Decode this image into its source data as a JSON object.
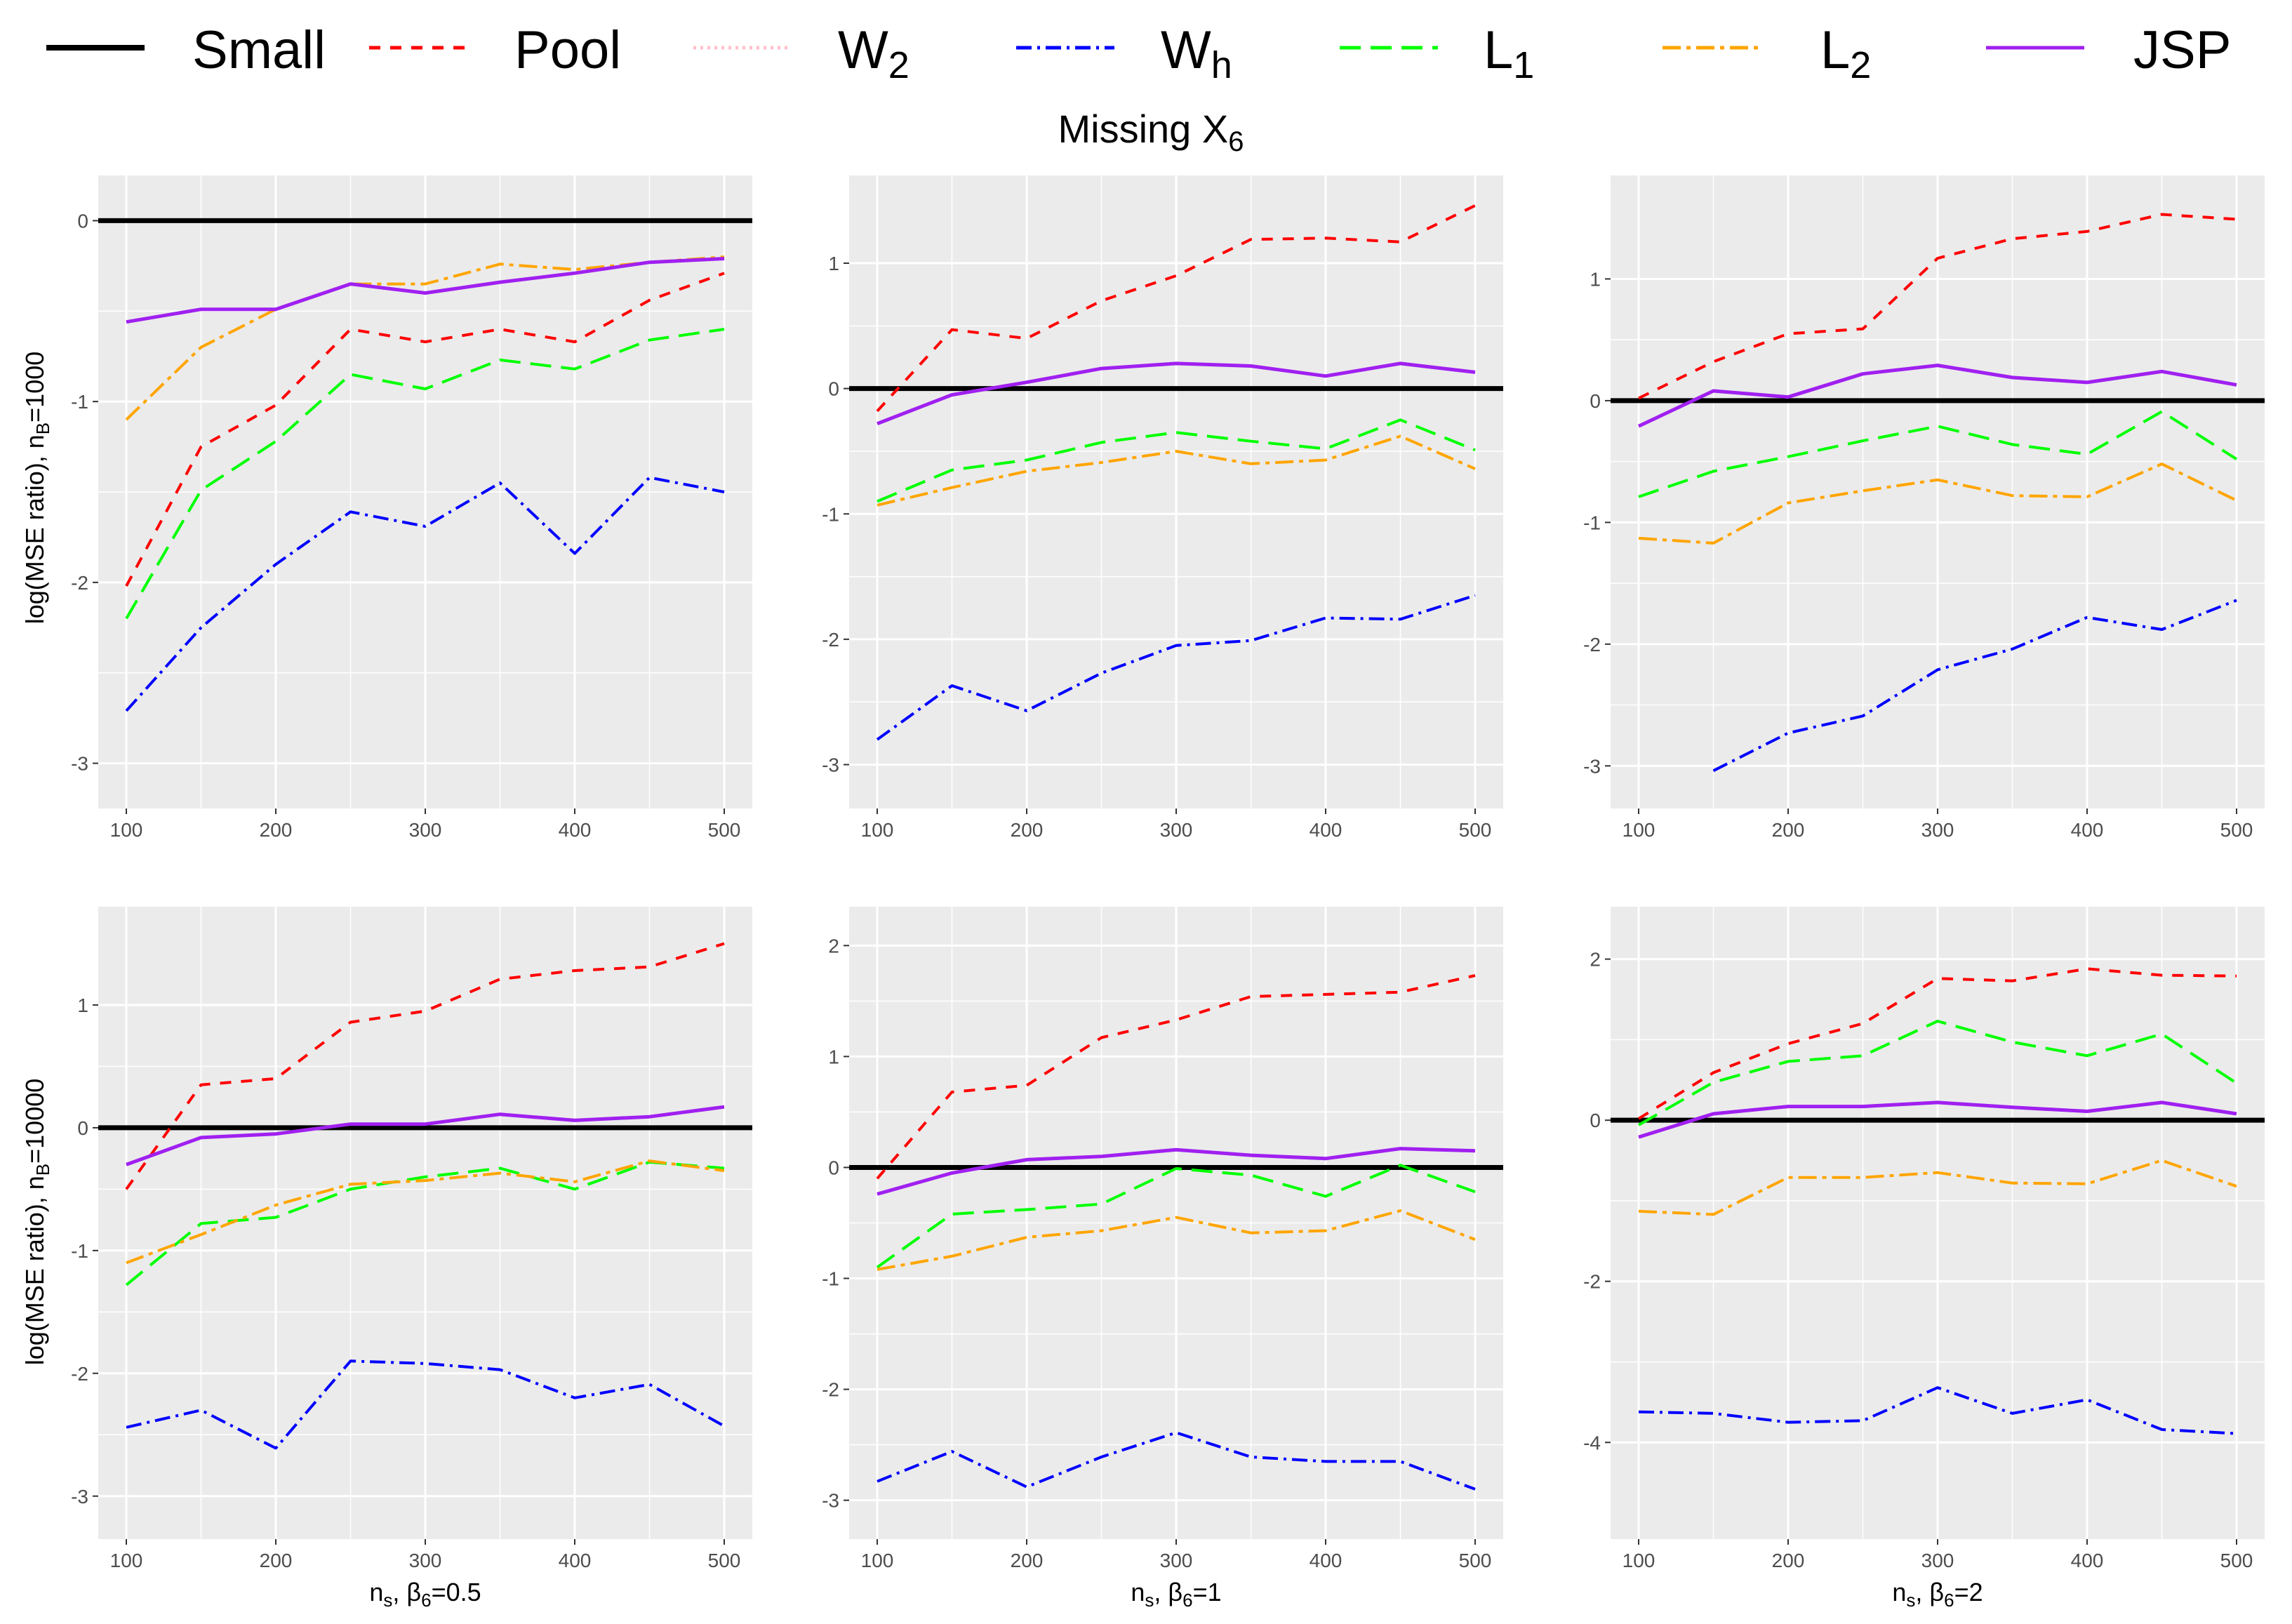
{
  "title_main": "Missing",
  "title_var": "X",
  "title_sub": "6",
  "legend": [
    {
      "key": "small",
      "base": "Small",
      "sub": "",
      "color": "#000000",
      "dash": "none",
      "width": 7
    },
    {
      "key": "pool",
      "base": "Pool",
      "sub": "",
      "color": "#ff0000",
      "dash": "16,14",
      "width": 4
    },
    {
      "key": "w2",
      "base": "W",
      "sub": "2",
      "color": "#ffc0cb",
      "dash": "4,6",
      "width": 4
    },
    {
      "key": "wh",
      "base": "W",
      "sub": "h",
      "color": "#0000ff",
      "dash": "22,8,4,8",
      "width": 4
    },
    {
      "key": "l1",
      "base": "L",
      "sub": "1",
      "color": "#00ff00",
      "dash": "30,14",
      "width": 4
    },
    {
      "key": "l2",
      "base": "L",
      "sub": "2",
      "color": "#ffa500",
      "dash": "26,8,6,8",
      "width": 4
    },
    {
      "key": "jsp",
      "base": "JSP",
      "sub": "",
      "color": "#a020f0",
      "dash": "none",
      "width": 5
    }
  ],
  "row_labels": [
    {
      "text": "log(MSE ratio), n",
      "sub": "B",
      "suffix": "=1000"
    },
    {
      "text": "log(MSE ratio), n",
      "sub": "B",
      "suffix": "=10000"
    }
  ],
  "col_labels": [
    {
      "text": "n",
      "sub1": "s",
      "mid": ", β",
      "sub2": "6",
      "suffix": "=0.5"
    },
    {
      "text": "n",
      "sub1": "s",
      "mid": ", β",
      "sub2": "6",
      "suffix": "=1"
    },
    {
      "text": "n",
      "sub1": "s",
      "mid": ", β",
      "sub2": "6",
      "suffix": "=2"
    }
  ],
  "chart_data": [
    {
      "type": "line",
      "row": 0,
      "col": 0,
      "x": [
        100,
        150,
        200,
        250,
        300,
        350,
        400,
        450,
        500
      ],
      "xticks": [
        100,
        200,
        300,
        400,
        500
      ],
      "xlim": [
        100,
        500
      ],
      "ylim": [
        -3.25,
        0.25
      ],
      "yticks": [
        0,
        -1,
        -2,
        -3
      ],
      "yticklabels": [
        "0",
        "-1",
        "-2",
        "-3"
      ],
      "series": [
        {
          "name": "Pool",
          "values": [
            -2.02,
            -1.25,
            -1.02,
            -0.6,
            -0.67,
            -0.6,
            -0.67,
            -0.44,
            -0.29
          ]
        },
        {
          "name": "L1",
          "values": [
            -2.2,
            -1.49,
            -1.22,
            -0.85,
            -0.93,
            -0.77,
            -0.82,
            -0.66,
            -0.6
          ]
        },
        {
          "name": "L2",
          "values": [
            -1.1,
            -0.7,
            -0.49,
            -0.35,
            -0.35,
            -0.24,
            -0.27,
            -0.23,
            -0.2
          ]
        },
        {
          "name": "Wh",
          "values": [
            -2.71,
            -2.25,
            -1.9,
            -1.61,
            -1.69,
            -1.45,
            -1.84,
            -1.42,
            -1.5
          ]
        },
        {
          "name": "JSP",
          "values": [
            -0.56,
            -0.49,
            -0.49,
            -0.35,
            -0.4,
            -0.34,
            -0.29,
            -0.23,
            -0.21
          ]
        }
      ]
    },
    {
      "type": "line",
      "row": 0,
      "col": 1,
      "x": [
        100,
        150,
        200,
        250,
        300,
        350,
        400,
        450,
        500
      ],
      "xticks": [
        100,
        200,
        300,
        400,
        500
      ],
      "xlim": [
        100,
        500
      ],
      "ylim": [
        -3.35,
        1.7
      ],
      "yticks": [
        1,
        0,
        -1,
        -2,
        -3
      ],
      "yticklabels": [
        "1",
        "0",
        "-1",
        "-2",
        "-3"
      ],
      "series": [
        {
          "name": "Pool",
          "values": [
            -0.18,
            0.47,
            0.4,
            0.7,
            0.9,
            1.19,
            1.2,
            1.17,
            1.46
          ]
        },
        {
          "name": "L1",
          "values": [
            -0.9,
            -0.65,
            -0.57,
            -0.43,
            -0.35,
            -0.42,
            -0.48,
            -0.25,
            -0.49
          ]
        },
        {
          "name": "L2",
          "values": [
            -0.93,
            -0.79,
            -0.66,
            -0.59,
            -0.5,
            -0.6,
            -0.57,
            -0.38,
            -0.64
          ]
        },
        {
          "name": "Wh",
          "values": [
            -2.8,
            -2.37,
            -2.57,
            -2.27,
            -2.05,
            -2.01,
            -1.83,
            -1.84,
            -1.65
          ]
        },
        {
          "name": "JSP",
          "values": [
            -0.28,
            -0.05,
            0.05,
            0.16,
            0.2,
            0.18,
            0.1,
            0.2,
            0.13
          ]
        }
      ]
    },
    {
      "type": "line",
      "row": 0,
      "col": 2,
      "x": [
        100,
        150,
        200,
        250,
        300,
        350,
        400,
        450,
        500
      ],
      "xticks": [
        100,
        200,
        300,
        400,
        500
      ],
      "xlim": [
        100,
        500
      ],
      "ylim": [
        -3.35,
        1.85
      ],
      "yticks": [
        1,
        0,
        -1,
        -2,
        -3
      ],
      "yticklabels": [
        "1",
        "0",
        "-1",
        "-2",
        "-3"
      ],
      "series": [
        {
          "name": "Pool",
          "values": [
            0.02,
            0.32,
            0.55,
            0.59,
            1.17,
            1.33,
            1.39,
            1.53,
            1.49
          ]
        },
        {
          "name": "L1",
          "values": [
            -0.79,
            -0.58,
            -0.46,
            -0.33,
            -0.21,
            -0.36,
            -0.44,
            -0.09,
            -0.48
          ]
        },
        {
          "name": "L2",
          "values": [
            -1.13,
            -1.17,
            -0.84,
            -0.74,
            -0.65,
            -0.78,
            -0.79,
            -0.52,
            -0.82
          ]
        },
        {
          "name": "Wh",
          "values": [
            null,
            -3.04,
            -2.73,
            -2.59,
            -2.21,
            -2.04,
            -1.78,
            -1.88,
            -1.64
          ]
        },
        {
          "name": "JSP",
          "values": [
            -0.21,
            0.08,
            0.03,
            0.22,
            0.29,
            0.19,
            0.15,
            0.24,
            0.13
          ]
        }
      ]
    },
    {
      "type": "line",
      "row": 1,
      "col": 0,
      "x": [
        100,
        150,
        200,
        250,
        300,
        350,
        400,
        450,
        500
      ],
      "xticks": [
        100,
        200,
        300,
        400,
        500
      ],
      "xlim": [
        100,
        500
      ],
      "ylim": [
        -3.35,
        1.8
      ],
      "yticks": [
        1,
        0,
        -1,
        -2,
        -3
      ],
      "yticklabels": [
        "1",
        "0",
        "-1",
        "-2",
        "-3"
      ],
      "series": [
        {
          "name": "Pool",
          "values": [
            -0.5,
            0.35,
            0.4,
            0.86,
            0.95,
            1.21,
            1.28,
            1.31,
            1.5
          ]
        },
        {
          "name": "L1",
          "values": [
            -1.28,
            -0.78,
            -0.73,
            -0.5,
            -0.4,
            -0.33,
            -0.5,
            -0.28,
            -0.33
          ]
        },
        {
          "name": "L2",
          "values": [
            -1.1,
            -0.87,
            -0.63,
            -0.46,
            -0.43,
            -0.37,
            -0.44,
            -0.27,
            -0.35
          ]
        },
        {
          "name": "Wh",
          "values": [
            -2.44,
            -2.3,
            -2.61,
            -1.9,
            -1.92,
            -1.97,
            -2.2,
            -2.09,
            -2.43
          ]
        },
        {
          "name": "JSP",
          "values": [
            -0.3,
            -0.08,
            -0.05,
            0.03,
            0.03,
            0.11,
            0.06,
            0.09,
            0.17
          ]
        }
      ]
    },
    {
      "type": "line",
      "row": 1,
      "col": 1,
      "x": [
        100,
        150,
        200,
        250,
        300,
        350,
        400,
        450,
        500
      ],
      "xticks": [
        100,
        200,
        300,
        400,
        500
      ],
      "xlim": [
        100,
        500
      ],
      "ylim": [
        -3.35,
        2.35
      ],
      "yticks": [
        2,
        1,
        0,
        -1,
        -2,
        -3
      ],
      "yticklabels": [
        "2",
        "1",
        "0",
        "-1",
        "-2",
        "-3"
      ],
      "series": [
        {
          "name": "Pool",
          "values": [
            -0.1,
            0.68,
            0.74,
            1.17,
            1.33,
            1.54,
            1.56,
            1.58,
            1.73
          ]
        },
        {
          "name": "L1",
          "values": [
            -0.9,
            -0.42,
            -0.38,
            -0.33,
            -0.01,
            -0.07,
            -0.26,
            0.02,
            -0.22
          ]
        },
        {
          "name": "L2",
          "values": [
            -0.92,
            -0.8,
            -0.63,
            -0.57,
            -0.45,
            -0.59,
            -0.57,
            -0.39,
            -0.65
          ]
        },
        {
          "name": "Wh",
          "values": [
            -2.83,
            -2.56,
            -2.88,
            -2.61,
            -2.39,
            -2.61,
            -2.65,
            -2.65,
            -2.9
          ]
        },
        {
          "name": "JSP",
          "values": [
            -0.24,
            -0.05,
            0.07,
            0.1,
            0.16,
            0.11,
            0.08,
            0.17,
            0.15
          ]
        }
      ]
    },
    {
      "type": "line",
      "row": 1,
      "col": 2,
      "x": [
        100,
        150,
        200,
        250,
        300,
        350,
        400,
        450,
        500
      ],
      "xticks": [
        100,
        200,
        300,
        400,
        500
      ],
      "xlim": [
        100,
        500
      ],
      "ylim": [
        -5.2,
        2.65
      ],
      "yticks": [
        2,
        0,
        -2,
        -4
      ],
      "yticklabels": [
        "2",
        "0",
        "-2",
        "-4"
      ],
      "series": [
        {
          "name": "Pool",
          "values": [
            0.02,
            0.59,
            0.95,
            1.2,
            1.76,
            1.73,
            1.88,
            1.8,
            1.79
          ]
        },
        {
          "name": "L1",
          "values": [
            -0.06,
            0.47,
            0.73,
            0.8,
            1.23,
            0.97,
            0.8,
            1.07,
            0.46
          ]
        },
        {
          "name": "L2",
          "values": [
            -1.13,
            -1.17,
            -0.71,
            -0.71,
            -0.65,
            -0.78,
            -0.79,
            -0.5,
            -0.82
          ]
        },
        {
          "name": "Wh",
          "values": [
            -3.62,
            -3.64,
            -3.75,
            -3.73,
            -3.32,
            -3.64,
            -3.47,
            -3.84,
            -3.89
          ]
        },
        {
          "name": "JSP",
          "values": [
            -0.21,
            0.08,
            0.17,
            0.17,
            0.22,
            0.16,
            0.11,
            0.22,
            0.08
          ]
        }
      ]
    }
  ]
}
